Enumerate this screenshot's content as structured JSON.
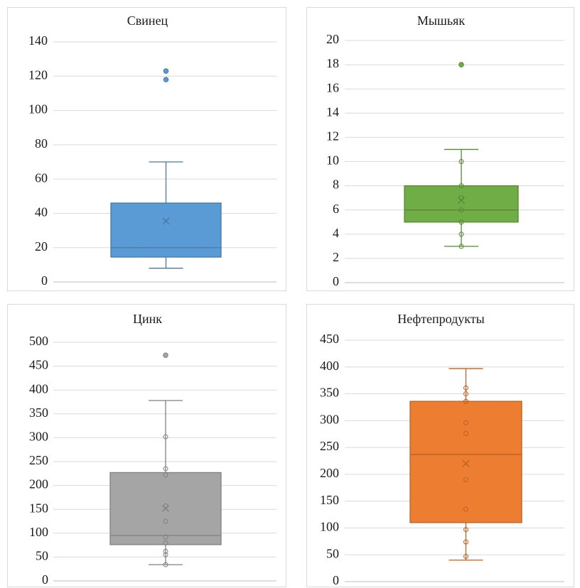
{
  "chart_data": [
    {
      "type": "box",
      "title": "Свинец",
      "color": "#5b9bd5",
      "ylim": [
        0,
        140
      ],
      "yticks": [
        0,
        20,
        40,
        60,
        80,
        100,
        120,
        140
      ],
      "box": {
        "min": 8,
        "q1": 14.5,
        "median": 20,
        "q3": 46,
        "max": 70,
        "mean": 35.5
      },
      "points": [],
      "outliers": [
        118,
        123
      ],
      "grid": true,
      "legend": "none"
    },
    {
      "type": "box",
      "title": "Мышьяк",
      "color": "#70ad47",
      "ylim": [
        0,
        20
      ],
      "yticks": [
        0,
        2,
        4,
        6,
        8,
        10,
        12,
        14,
        16,
        18,
        20
      ],
      "box": {
        "min": 3,
        "q1": 5,
        "median": 6,
        "q3": 8,
        "max": 11,
        "mean": 6.8
      },
      "points": [
        3,
        4,
        5,
        6,
        7,
        8,
        10
      ],
      "outliers": [
        18
      ],
      "grid": true,
      "legend": "none"
    },
    {
      "type": "box",
      "title": "Цинк",
      "color": "#a5a5a5",
      "ylim": [
        0,
        500
      ],
      "yticks": [
        0,
        50,
        100,
        150,
        200,
        250,
        300,
        350,
        400,
        450,
        500
      ],
      "box": {
        "min": 34,
        "q1": 76,
        "median": 95,
        "q3": 227,
        "max": 378,
        "mean": 152
      },
      "points": [
        34,
        55,
        62,
        80,
        92,
        125,
        157,
        222,
        235,
        302
      ],
      "outliers": [
        473
      ],
      "grid": true,
      "legend": "none"
    },
    {
      "type": "box",
      "title": "Нефтепродукты",
      "color": "#ed7d31",
      "ylim": [
        0,
        450
      ],
      "yticks": [
        0,
        50,
        100,
        150,
        200,
        250,
        300,
        350,
        400,
        450
      ],
      "box": {
        "min": 40,
        "q1": 110,
        "median": 237,
        "q3": 336,
        "max": 397,
        "mean": 220
      },
      "points": [
        47,
        74,
        97,
        135,
        190,
        276,
        296,
        336,
        350,
        361
      ],
      "outliers": [],
      "grid": true,
      "legend": "none"
    }
  ]
}
